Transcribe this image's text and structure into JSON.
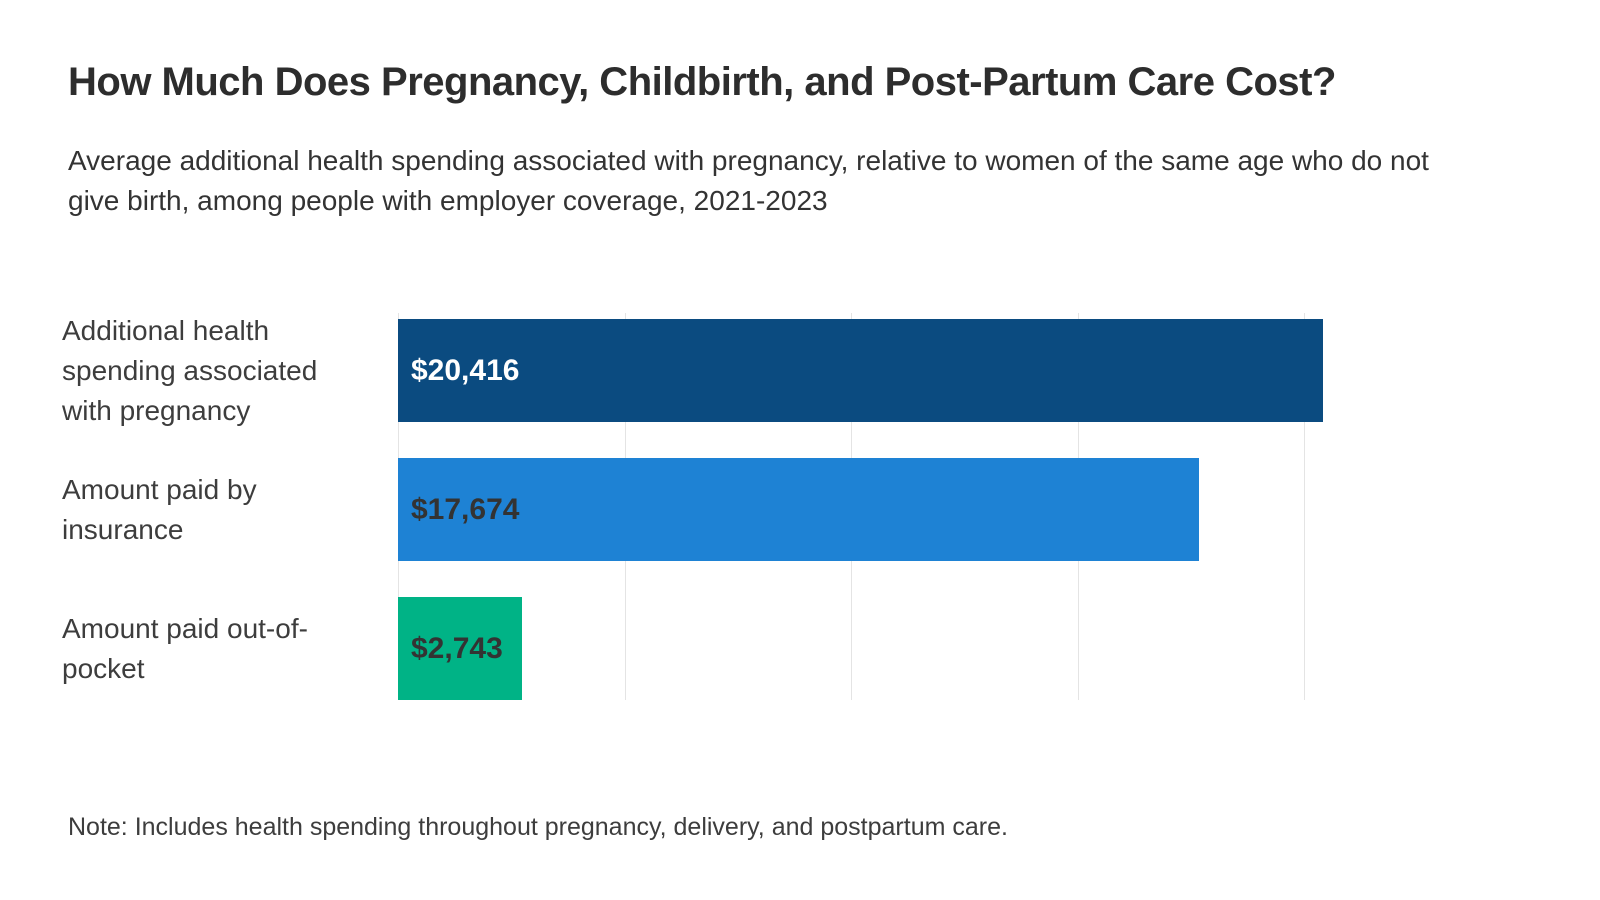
{
  "header": {
    "title": "How Much Does Pregnancy, Childbirth, and Post-Partum Care Cost?",
    "subtitle": "Average additional health spending associated with pregnancy, relative to women of the same age who do not give birth, among people with employer coverage, 2021-2023"
  },
  "note": "Note: Includes health spending throughout pregnancy, delivery, and postpartum care.",
  "colors": {
    "dark_navy": "#0b4b80",
    "medium_blue": "#1e82d4",
    "green": "#00b386",
    "gridline": "#e4e4e4",
    "title_text": "#2d2d2d",
    "body_text": "#3d3d3d"
  },
  "chart_data": {
    "type": "bar",
    "orientation": "horizontal",
    "title": "How Much Does Pregnancy, Childbirth, and Post-Partum Care Cost?",
    "categories": [
      "Additional health spending associated with pregnancy",
      "Amount paid by insurance",
      "Amount paid out-of-pocket"
    ],
    "values": [
      20416,
      17674,
      2743
    ],
    "value_labels": [
      "$20,416",
      "$17,674",
      "$2,743"
    ],
    "bar_colors": [
      "#0b4b80",
      "#1e82d4",
      "#00b386"
    ],
    "value_label_colors": [
      "#ffffff",
      "#333333",
      "#333333"
    ],
    "xlabel": "",
    "ylabel": "",
    "xlim": [
      0,
      23000
    ],
    "gridlines": [
      0,
      5000,
      10000,
      15000,
      20000
    ],
    "grid_color": "#e4e4e4",
    "legend_position": "none",
    "value_labels_inside_bars": true
  }
}
